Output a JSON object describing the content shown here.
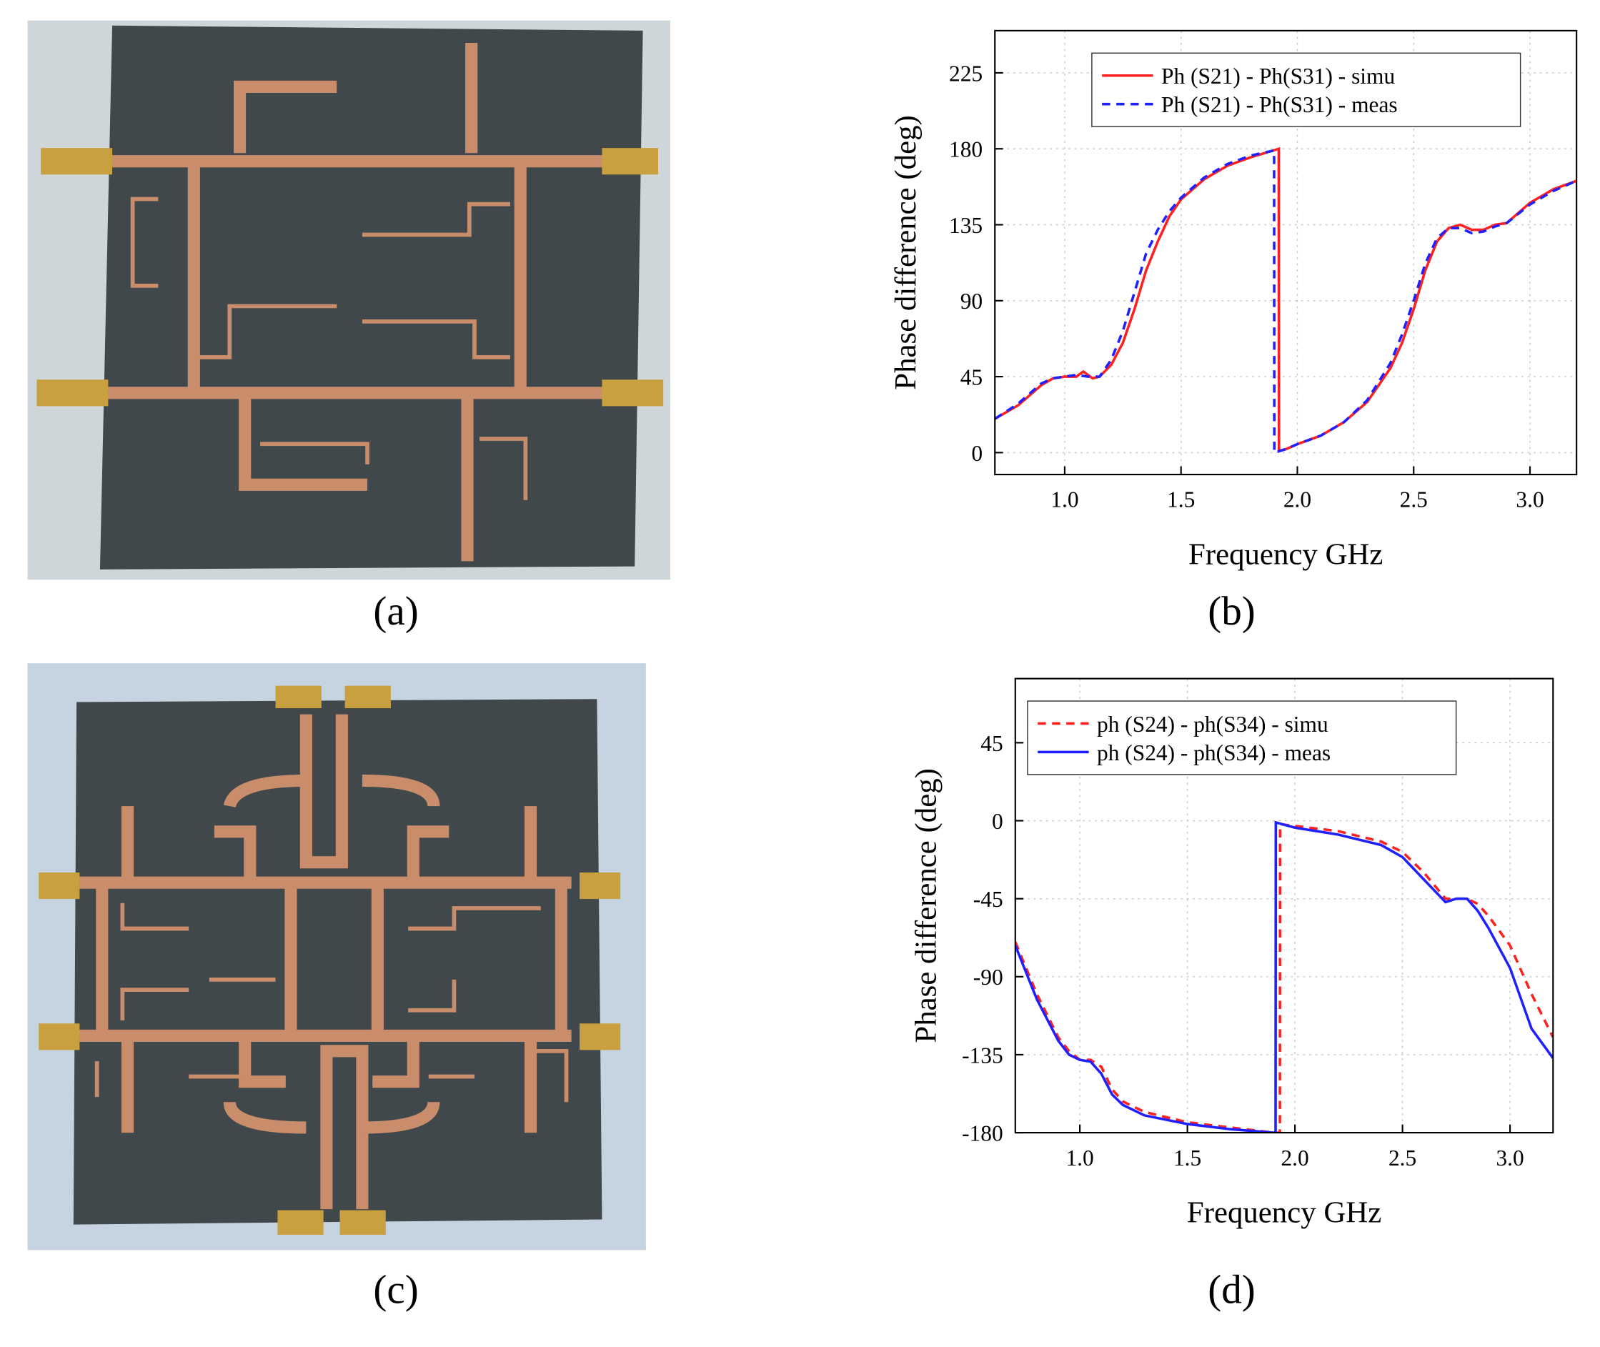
{
  "captions": [
    "(a)",
    "(b)",
    "(c)",
    "(d)"
  ],
  "chart_data": [
    {
      "type": "line",
      "xlabel": "Frequency GHz",
      "ylabel": "Phase difference (deg)",
      "xlim": [
        0.7,
        3.2
      ],
      "ylim": [
        -13,
        250
      ],
      "xticks": [
        {
          "value": 1,
          "label": "1.0"
        },
        1.5,
        {
          "value": 2,
          "label": "2.0"
        },
        2.5,
        {
          "value": 3,
          "label": "3.0"
        }
      ],
      "yticks": [
        0,
        45,
        90,
        135,
        180,
        225
      ],
      "grid": true,
      "legend": "upper center",
      "series": [
        {
          "name": "Ph (S21) - Ph(S31) - simu",
          "color": "#ff2020",
          "dash": false,
          "x": [
            0.7,
            0.8,
            0.9,
            0.95,
            1.0,
            1.05,
            1.08,
            1.12,
            1.15,
            1.2,
            1.25,
            1.3,
            1.35,
            1.4,
            1.45,
            1.5,
            1.6,
            1.7,
            1.8,
            1.92,
            1.921,
            1.95,
            2.0,
            2.1,
            2.2,
            2.3,
            2.4,
            2.45,
            2.5,
            2.55,
            2.6,
            2.65,
            2.7,
            2.75,
            2.8,
            2.85,
            2.9,
            3.0,
            3.1,
            3.2
          ],
          "values": [
            20,
            28,
            40,
            44,
            45,
            45,
            48,
            44,
            45,
            52,
            65,
            85,
            108,
            125,
            140,
            150,
            162,
            170,
            175,
            180,
            1,
            2,
            5,
            10,
            18,
            30,
            50,
            65,
            85,
            108,
            125,
            133,
            135,
            132,
            132,
            135,
            136,
            148,
            156,
            161
          ]
        },
        {
          "name": "Ph (S21) - Ph(S31) - meas",
          "color": "#2020ff",
          "dash": true,
          "x": [
            0.7,
            0.8,
            0.9,
            0.95,
            1.0,
            1.05,
            1.1,
            1.15,
            1.2,
            1.25,
            1.3,
            1.35,
            1.4,
            1.45,
            1.5,
            1.6,
            1.7,
            1.8,
            1.9,
            1.901,
            1.95,
            2.0,
            2.1,
            2.2,
            2.3,
            2.4,
            2.45,
            2.5,
            2.55,
            2.6,
            2.65,
            2.7,
            2.75,
            2.8,
            2.85,
            2.9,
            3.0,
            3.1,
            3.2
          ],
          "values": [
            20,
            29,
            41,
            44,
            45,
            46,
            45,
            45,
            55,
            72,
            95,
            118,
            132,
            143,
            151,
            163,
            171,
            176,
            179,
            0,
            2,
            5,
            10,
            18,
            31,
            53,
            70,
            90,
            112,
            127,
            133,
            133,
            130,
            131,
            134,
            136,
            147,
            155,
            161
          ]
        }
      ]
    },
    {
      "type": "line",
      "xlabel": "Frequency GHz",
      "ylabel": "Phase difference (deg)",
      "xlim": [
        0.7,
        3.2
      ],
      "ylim": [
        -180,
        82
      ],
      "xticks": [
        {
          "value": 1,
          "label": "1.0"
        },
        1.5,
        {
          "value": 2,
          "label": "2.0"
        },
        2.5,
        {
          "value": 3,
          "label": "3.0"
        }
      ],
      "yticks": [
        -180,
        -135,
        -90,
        -45,
        0,
        45
      ],
      "grid": true,
      "legend": "upper left",
      "series": [
        {
          "name": "ph (S24) - ph(S34) - simu",
          "color": "#ff2020",
          "dash": true,
          "x": [
            0.7,
            0.8,
            0.9,
            0.95,
            1.0,
            1.05,
            1.1,
            1.15,
            1.2,
            1.3,
            1.5,
            1.7,
            1.9,
            1.93,
            1.931,
            2.0,
            2.2,
            2.4,
            2.5,
            2.6,
            2.7,
            2.75,
            2.8,
            2.85,
            2.9,
            3.0,
            3.1,
            3.2
          ],
          "values": [
            -70,
            -100,
            -125,
            -133,
            -138,
            -138,
            -142,
            -155,
            -162,
            -168,
            -174,
            -177,
            -180,
            -180,
            -2,
            -3,
            -6,
            -12,
            -18,
            -30,
            -45,
            -45,
            -45,
            -48,
            -55,
            -72,
            -100,
            -125
          ]
        },
        {
          "name": "ph (S24) - ph(S34) - meas",
          "color": "#2020ff",
          "dash": false,
          "x": [
            0.7,
            0.8,
            0.9,
            0.95,
            1.0,
            1.05,
            1.1,
            1.15,
            1.2,
            1.3,
            1.5,
            1.7,
            1.9,
            1.91,
            1.911,
            2.0,
            2.2,
            2.4,
            2.5,
            2.6,
            2.7,
            2.75,
            2.8,
            2.85,
            2.9,
            3.0,
            3.1,
            3.2
          ],
          "values": [
            -72,
            -103,
            -127,
            -135,
            -138,
            -139,
            -146,
            -158,
            -164,
            -170,
            -175,
            -178,
            -180,
            -180,
            -1,
            -4,
            -8,
            -14,
            -21,
            -34,
            -47,
            -45,
            -45,
            -52,
            -62,
            -85,
            -120,
            -137
          ]
        }
      ]
    }
  ]
}
